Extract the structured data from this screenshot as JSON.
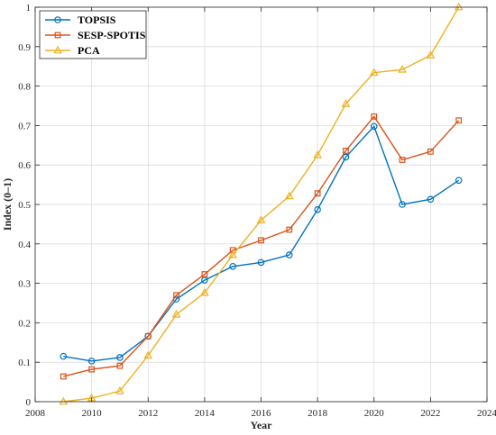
{
  "chart_data": {
    "type": "line",
    "xlabel": "Year",
    "ylabel": "Index (0–1)",
    "xlim": [
      2008,
      2024
    ],
    "ylim": [
      0,
      1
    ],
    "xticks": [
      2008,
      2010,
      2012,
      2014,
      2016,
      2018,
      2020,
      2022,
      2024
    ],
    "yticks": [
      0,
      0.1,
      0.2,
      0.3,
      0.4,
      0.5,
      0.6,
      0.7,
      0.8,
      0.9,
      1
    ],
    "grid": true,
    "legend_position": "top-left",
    "x": [
      2009,
      2010,
      2011,
      2012,
      2013,
      2014,
      2015,
      2016,
      2017,
      2018,
      2019,
      2020,
      2021,
      2022,
      2023
    ],
    "series": [
      {
        "name": "TOPSIS",
        "color": "#0072BD",
        "marker": "circle",
        "values": [
          0.115,
          0.103,
          0.112,
          0.166,
          0.26,
          0.308,
          0.343,
          0.353,
          0.372,
          0.487,
          0.62,
          0.698,
          0.5,
          0.513,
          0.561
        ]
      },
      {
        "name": "SESP-SPOTIS",
        "color": "#D95319",
        "marker": "square",
        "values": [
          0.064,
          0.082,
          0.091,
          0.166,
          0.27,
          0.323,
          0.384,
          0.409,
          0.436,
          0.528,
          0.636,
          0.723,
          0.613,
          0.634,
          0.713
        ]
      },
      {
        "name": "PCA",
        "color": "#EDB120",
        "marker": "triangle",
        "values": [
          0.0,
          0.009,
          0.027,
          0.117,
          0.221,
          0.276,
          0.372,
          0.46,
          0.521,
          0.625,
          0.755,
          0.834,
          0.842,
          0.878,
          1.0
        ]
      }
    ]
  }
}
